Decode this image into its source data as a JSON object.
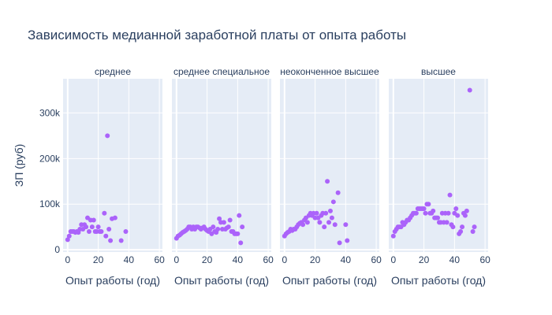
{
  "chart_data": {
    "type": "scatter",
    "title": "Зависимость медианной заработной платы от опыта работы",
    "xlabel": "Опыт работы (год)",
    "ylabel": "ЗП (руб)",
    "xlim": [
      -3,
      62
    ],
    "ylim": [
      -5000,
      375000
    ],
    "x_ticks": [
      0,
      20,
      40,
      60
    ],
    "y_ticks": [
      0,
      100000,
      200000,
      300000
    ],
    "y_tick_labels": [
      "0",
      "100k",
      "200k",
      "300k"
    ],
    "grid": true,
    "marker_color": "#ab63fa",
    "facets": [
      {
        "name": "среднее",
        "points": [
          [
            0,
            22000
          ],
          [
            1,
            30000
          ],
          [
            2,
            40000
          ],
          [
            3,
            40000
          ],
          [
            4,
            40000
          ],
          [
            5,
            38000
          ],
          [
            6,
            40000
          ],
          [
            7,
            38000
          ],
          [
            8,
            45000
          ],
          [
            9,
            55000
          ],
          [
            10,
            45000
          ],
          [
            11,
            55000
          ],
          [
            12,
            50000
          ],
          [
            13,
            70000
          ],
          [
            14,
            40000
          ],
          [
            15,
            65000
          ],
          [
            16,
            50000
          ],
          [
            17,
            65000
          ],
          [
            18,
            40000
          ],
          [
            19,
            40000
          ],
          [
            20,
            50000
          ],
          [
            21,
            40000
          ],
          [
            22,
            40000
          ],
          [
            24,
            80000
          ],
          [
            25,
            30000
          ],
          [
            26,
            250000
          ],
          [
            27,
            45000
          ],
          [
            28,
            20000
          ],
          [
            29,
            68000
          ],
          [
            31,
            70000
          ],
          [
            35,
            20000
          ],
          [
            38,
            40000
          ]
        ]
      },
      {
        "name": "среднее специальное",
        "points": [
          [
            0,
            25000
          ],
          [
            1,
            30000
          ],
          [
            2,
            32000
          ],
          [
            3,
            35000
          ],
          [
            4,
            38000
          ],
          [
            5,
            40000
          ],
          [
            6,
            42000
          ],
          [
            7,
            45000
          ],
          [
            8,
            50000
          ],
          [
            9,
            50000
          ],
          [
            10,
            45000
          ],
          [
            11,
            50000
          ],
          [
            12,
            45000
          ],
          [
            13,
            50000
          ],
          [
            14,
            50000
          ],
          [
            15,
            48000
          ],
          [
            16,
            45000
          ],
          [
            17,
            48000
          ],
          [
            18,
            50000
          ],
          [
            19,
            45000
          ],
          [
            20,
            42000
          ],
          [
            21,
            40000
          ],
          [
            22,
            45000
          ],
          [
            23,
            35000
          ],
          [
            24,
            50000
          ],
          [
            25,
            40000
          ],
          [
            26,
            38000
          ],
          [
            27,
            45000
          ],
          [
            28,
            68000
          ],
          [
            29,
            60000
          ],
          [
            30,
            45000
          ],
          [
            31,
            60000
          ],
          [
            32,
            45000
          ],
          [
            33,
            48000
          ],
          [
            34,
            50000
          ],
          [
            35,
            65000
          ],
          [
            36,
            40000
          ],
          [
            37,
            40000
          ],
          [
            38,
            35000
          ],
          [
            39,
            35000
          ],
          [
            40,
            35000
          ],
          [
            41,
            75000
          ],
          [
            42,
            15000
          ],
          [
            43,
            50000
          ]
        ]
      },
      {
        "name": "неоконченное высшее",
        "points": [
          [
            0,
            30000
          ],
          [
            1,
            35000
          ],
          [
            2,
            38000
          ],
          [
            3,
            40000
          ],
          [
            4,
            45000
          ],
          [
            5,
            42000
          ],
          [
            6,
            45000
          ],
          [
            7,
            45000
          ],
          [
            8,
            50000
          ],
          [
            9,
            55000
          ],
          [
            10,
            58000
          ],
          [
            11,
            60000
          ],
          [
            12,
            55000
          ],
          [
            13,
            65000
          ],
          [
            14,
            70000
          ],
          [
            15,
            60000
          ],
          [
            16,
            75000
          ],
          [
            17,
            80000
          ],
          [
            18,
            75000
          ],
          [
            19,
            80000
          ],
          [
            20,
            70000
          ],
          [
            21,
            80000
          ],
          [
            22,
            70000
          ],
          [
            23,
            60000
          ],
          [
            24,
            75000
          ],
          [
            25,
            80000
          ],
          [
            26,
            50000
          ],
          [
            27,
            80000
          ],
          [
            28,
            150000
          ],
          [
            29,
            60000
          ],
          [
            30,
            85000
          ],
          [
            31,
            70000
          ],
          [
            32,
            105000
          ],
          [
            33,
            55000
          ],
          [
            35,
            125000
          ],
          [
            36,
            15000
          ],
          [
            40,
            55000
          ],
          [
            41,
            20000
          ]
        ]
      },
      {
        "name": "высшее",
        "points": [
          [
            0,
            30000
          ],
          [
            1,
            40000
          ],
          [
            2,
            45000
          ],
          [
            3,
            50000
          ],
          [
            4,
            50000
          ],
          [
            5,
            50000
          ],
          [
            6,
            60000
          ],
          [
            7,
            55000
          ],
          [
            8,
            60000
          ],
          [
            9,
            65000
          ],
          [
            10,
            65000
          ],
          [
            11,
            70000
          ],
          [
            12,
            75000
          ],
          [
            13,
            80000
          ],
          [
            14,
            80000
          ],
          [
            15,
            80000
          ],
          [
            16,
            90000
          ],
          [
            17,
            90000
          ],
          [
            18,
            90000
          ],
          [
            19,
            90000
          ],
          [
            20,
            90000
          ],
          [
            21,
            80000
          ],
          [
            22,
            100000
          ],
          [
            23,
            100000
          ],
          [
            24,
            80000
          ],
          [
            25,
            80000
          ],
          [
            26,
            85000
          ],
          [
            27,
            70000
          ],
          [
            28,
            70000
          ],
          [
            29,
            70000
          ],
          [
            30,
            60000
          ],
          [
            31,
            60000
          ],
          [
            32,
            80000
          ],
          [
            33,
            60000
          ],
          [
            34,
            80000
          ],
          [
            35,
            60000
          ],
          [
            36,
            80000
          ],
          [
            37,
            120000
          ],
          [
            38,
            55000
          ],
          [
            39,
            50000
          ],
          [
            40,
            80000
          ],
          [
            41,
            90000
          ],
          [
            42,
            75000
          ],
          [
            43,
            35000
          ],
          [
            44,
            40000
          ],
          [
            45,
            50000
          ],
          [
            46,
            80000
          ],
          [
            47,
            75000
          ],
          [
            48,
            85000
          ],
          [
            50,
            350000
          ],
          [
            52,
            40000
          ],
          [
            53,
            50000
          ]
        ]
      }
    ]
  }
}
